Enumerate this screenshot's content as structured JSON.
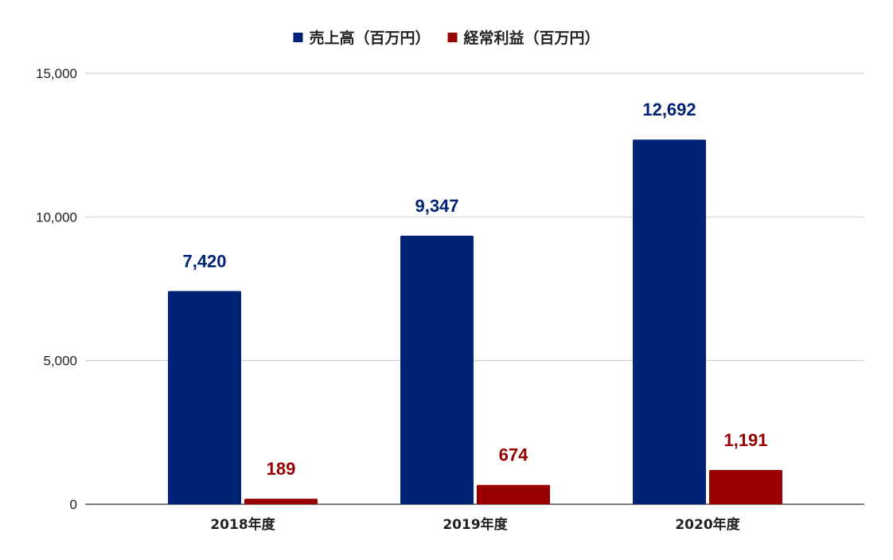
{
  "chart_data": {
    "type": "bar",
    "categories": [
      "2018年度",
      "2019年度",
      "2020年度"
    ],
    "series": [
      {
        "name": "売上高（百万円）",
        "values": [
          7420,
          9347,
          12692
        ],
        "color": "#002277"
      },
      {
        "name": "経常利益（百万円）",
        "values": [
          189,
          674,
          1191
        ],
        "color": "#990000"
      }
    ],
    "ylim": [
      0,
      15000
    ],
    "y_ticks": [
      0,
      5000,
      10000,
      15000
    ],
    "y_tick_labels": [
      "0",
      "5,000",
      "10,000",
      "15,000"
    ],
    "data_labels": [
      [
        "7,420",
        "9,347",
        "12,692"
      ],
      [
        "189",
        "674",
        "1,191"
      ]
    ],
    "grid": true,
    "legend_position": "top-center",
    "gridline_color": "#cccccc",
    "axis_color": "#333333"
  }
}
